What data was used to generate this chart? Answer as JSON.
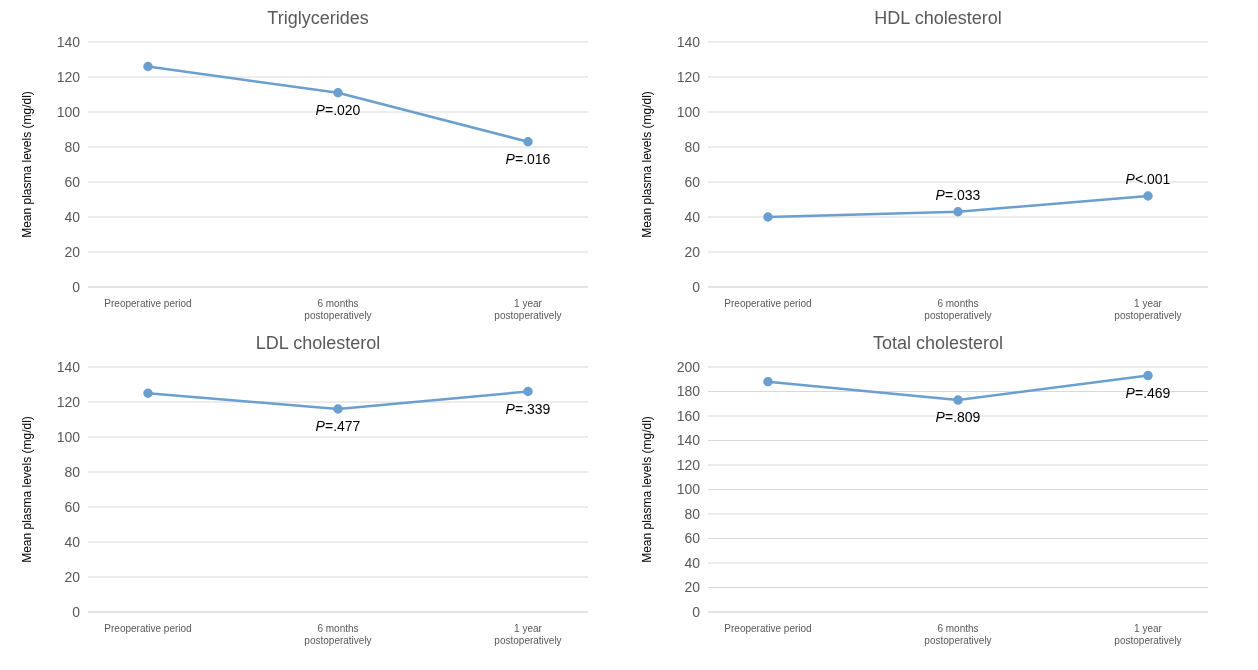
{
  "chart_data": [
    {
      "type": "line",
      "title": "Triglycerides",
      "ylabel": "Mean plasma levels (mg/dl)",
      "categories": [
        "Preoperative period",
        "6 months postoperatively",
        "1 year postoperatively"
      ],
      "series": [
        {
          "color": "#6a9fd0",
          "values": [
            126,
            111,
            83
          ]
        }
      ],
      "ylim": [
        0,
        140
      ],
      "yticks": [
        0,
        20,
        40,
        60,
        80,
        100,
        120,
        140
      ],
      "grid": "y",
      "legend": false,
      "marker": "circle",
      "annotations": [
        {
          "text": "P=.020",
          "x": "6 months postoperatively",
          "y": 111
        },
        {
          "text": "P=.016",
          "x": "1 year postoperatively",
          "y": 83
        }
      ]
    },
    {
      "type": "line",
      "title": "HDL cholesterol",
      "ylabel": "Mean plasma levels (mg/dl)",
      "categories": [
        "Preoperative period",
        "6 months postoperatively",
        "1 year postoperatively"
      ],
      "series": [
        {
          "color": "#6a9fd0",
          "values": [
            40,
            43,
            52
          ]
        }
      ],
      "ylim": [
        0,
        140
      ],
      "yticks": [
        0,
        20,
        40,
        60,
        80,
        100,
        120,
        140
      ],
      "grid": "y",
      "legend": false,
      "marker": "circle",
      "annotations": [
        {
          "text": "P=.033",
          "x": "6 months postoperatively",
          "y": 43
        },
        {
          "text": "P<.001",
          "x": "1 year postoperatively",
          "y": 52
        }
      ]
    },
    {
      "type": "line",
      "title": "LDL cholesterol",
      "ylabel": "Mean plasma levels (mg/dl)",
      "categories": [
        "Preoperative period",
        "6 months postoperatively",
        "1 year postoperatively"
      ],
      "series": [
        {
          "color": "#6a9fd0",
          "values": [
            125,
            116,
            126
          ]
        }
      ],
      "ylim": [
        0,
        140
      ],
      "yticks": [
        0,
        20,
        40,
        60,
        80,
        100,
        120,
        140
      ],
      "grid": "y",
      "legend": false,
      "marker": "circle",
      "annotations": [
        {
          "text": "P=.477",
          "x": "6 months postoperatively",
          "y": 116
        },
        {
          "text": "P=.339",
          "x": "1 year postoperatively",
          "y": 126
        }
      ]
    },
    {
      "type": "line",
      "title": "Total cholesterol",
      "ylabel": "Mean plasma levels (mg/dl)",
      "categories": [
        "Preoperative period",
        "6 months postoperatively",
        "1 year postoperatively"
      ],
      "series": [
        {
          "color": "#6a9fd0",
          "values": [
            188,
            173,
            193
          ]
        }
      ],
      "ylim": [
        0,
        200
      ],
      "yticks": [
        0,
        20,
        40,
        60,
        80,
        100,
        120,
        140,
        160,
        180,
        200
      ],
      "grid": "y",
      "legend": false,
      "marker": "circle",
      "annotations": [
        {
          "text": "P=.809",
          "x": "6 months postoperatively",
          "y": 173
        },
        {
          "text": "P=.469",
          "x": "1 year postoperatively",
          "y": 193
        }
      ]
    }
  ]
}
